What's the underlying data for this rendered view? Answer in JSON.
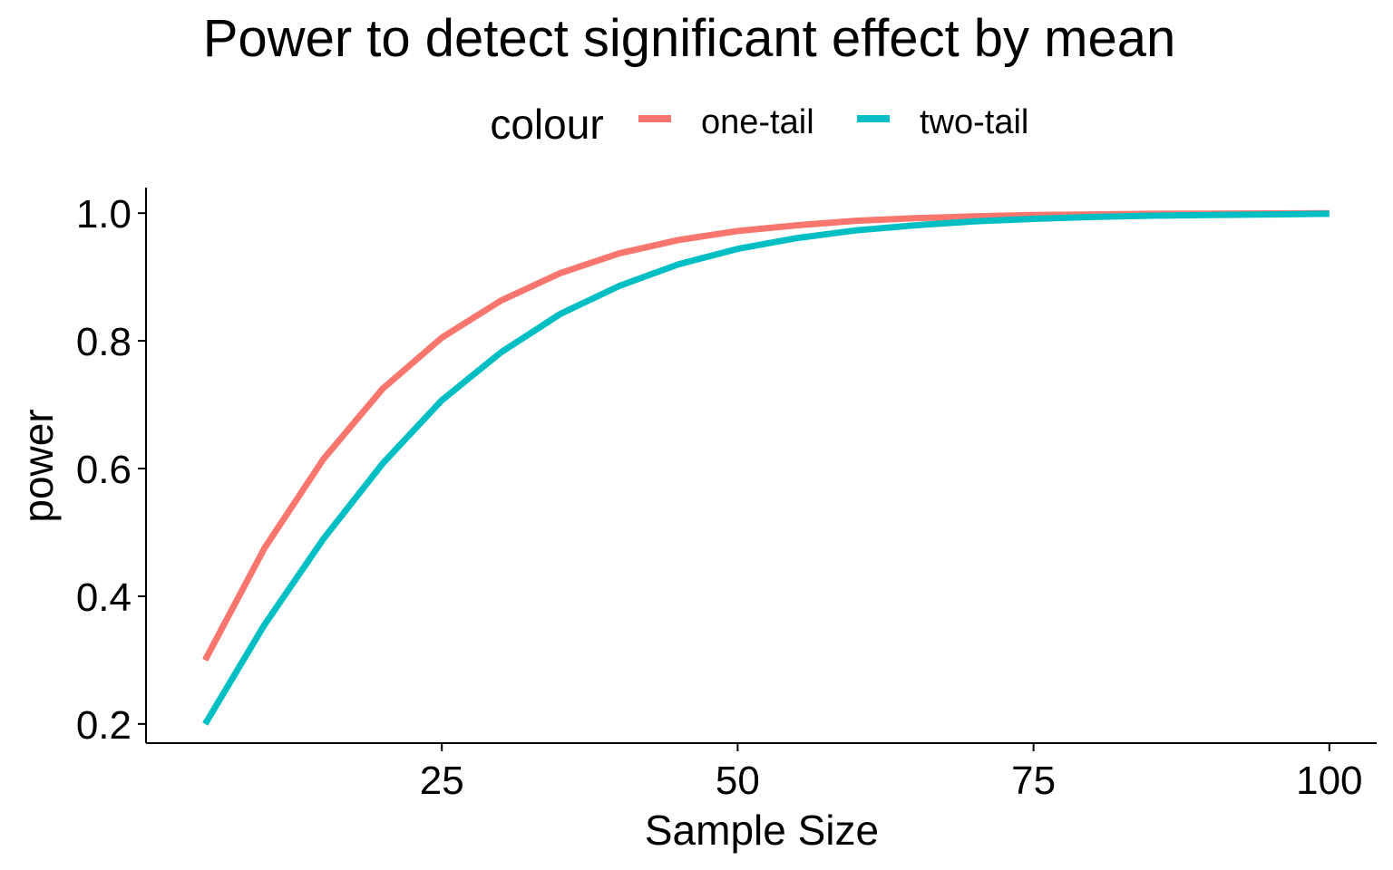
{
  "chart_data": {
    "type": "line",
    "title": "Power to detect significant effect by mean",
    "xlabel": "Sample Size",
    "ylabel": "power",
    "xlim": [
      0,
      104
    ],
    "ylim": [
      0.17,
      1.04
    ],
    "xticks": [
      25,
      50,
      75,
      100
    ],
    "xtick_labels": [
      "25",
      "50",
      "75",
      "100"
    ],
    "yticks": [
      0.2,
      0.4,
      0.6,
      0.8,
      1.0
    ],
    "ytick_labels": [
      "0.2",
      "0.4",
      "0.6",
      "0.8",
      "1.0"
    ],
    "grid": false,
    "legend": {
      "title": "colour",
      "position": "top"
    },
    "x": [
      5,
      10,
      15,
      20,
      25,
      30,
      35,
      40,
      45,
      50,
      55,
      60,
      65,
      70,
      75,
      80,
      85,
      90,
      95,
      100
    ],
    "series": [
      {
        "name": "one-tail",
        "color": "#F8766D",
        "values": [
          0.3,
          0.475,
          0.615,
          0.725,
          0.805,
          0.863,
          0.906,
          0.937,
          0.958,
          0.972,
          0.981,
          0.988,
          0.992,
          0.995,
          0.997,
          0.998,
          0.999,
          0.9993,
          0.9996,
          0.9998
        ]
      },
      {
        "name": "two-tail",
        "color": "#00BFC4",
        "values": [
          0.2,
          0.355,
          0.49,
          0.608,
          0.707,
          0.782,
          0.842,
          0.886,
          0.92,
          0.944,
          0.961,
          0.973,
          0.981,
          0.987,
          0.991,
          0.994,
          0.996,
          0.997,
          0.998,
          0.999
        ]
      }
    ]
  }
}
